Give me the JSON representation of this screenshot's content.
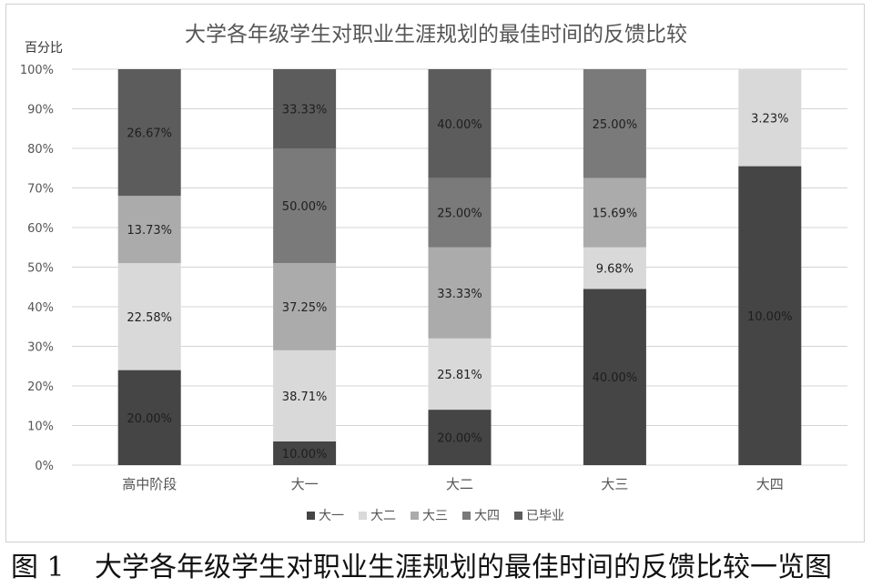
{
  "caption": {
    "figure_number": "图 1",
    "text": "大学各年级学生对职业生涯规划的最佳时间的反馈比较一览图"
  },
  "colors": {
    "大一": "#454545",
    "大二": "#d9d9d9",
    "大三": "#ababab",
    "大四": "#7a7a7a",
    "已毕业": "#5c5c5c",
    "gridline": "#d4d4d4",
    "axis_text": "#555555"
  },
  "chart_data": {
    "type": "bar",
    "stacked": "percent",
    "title": "大学各年级学生对职业生涯规划的最佳时间的反馈比较",
    "ylabel": "百分比",
    "xlabel": "",
    "ylim": [
      0,
      100
    ],
    "yticks": [
      "0%",
      "10%",
      "20%",
      "30%",
      "40%",
      "50%",
      "60%",
      "70%",
      "80%",
      "90%",
      "100%"
    ],
    "categories": [
      "高中阶段",
      "大一",
      "大二",
      "大三",
      "大四"
    ],
    "grid": "horizontal",
    "legend_position": "bottom",
    "series": [
      {
        "name": "大一",
        "heights": [
          24,
          6,
          14,
          44.5,
          75.5
        ],
        "labels": [
          "20.00%",
          "10.00%",
          "20.00%",
          "40.00%",
          "10.00%"
        ]
      },
      {
        "name": "大二",
        "heights": [
          27,
          23,
          18,
          10.5,
          24.5
        ],
        "labels": [
          "22.58%",
          "38.71%",
          "25.81%",
          "9.68%",
          "3.23%"
        ]
      },
      {
        "name": "大三",
        "heights": [
          17,
          22,
          23,
          17.5,
          0
        ],
        "labels": [
          "13.73%",
          "37.25%",
          "33.33%",
          "15.69%",
          ""
        ]
      },
      {
        "name": "大四",
        "heights": [
          0,
          29,
          17.5,
          27.5,
          0
        ],
        "labels": [
          "",
          "50.00%",
          "25.00%",
          "25.00%",
          ""
        ]
      },
      {
        "name": "已毕业",
        "heights": [
          32,
          20,
          27.5,
          0,
          0
        ],
        "labels": [
          "26.67%",
          "33.33%",
          "40.00%",
          "",
          ""
        ]
      }
    ]
  }
}
